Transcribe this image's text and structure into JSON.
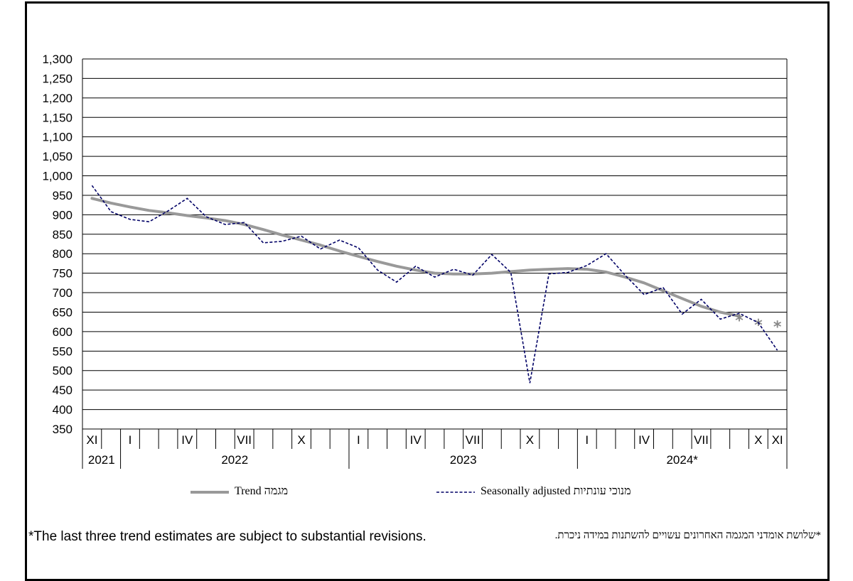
{
  "chart_data": {
    "type": "line",
    "y_ticks": [
      "1,300",
      "1,250",
      "1,200",
      "1,150",
      "1,100",
      "1,050",
      "1,000",
      "950",
      "900",
      "850",
      "800",
      "750",
      "700",
      "650",
      "600",
      "550",
      "500",
      "450",
      "400",
      "350"
    ],
    "ylim": [
      350,
      1300
    ],
    "month_labels": [
      "XI",
      "",
      "I",
      "",
      "",
      "IV",
      "",
      "",
      "VII",
      "",
      "",
      "X",
      "",
      "",
      "I",
      "",
      "",
      "IV",
      "",
      "",
      "VII",
      "",
      "",
      "X",
      "",
      "",
      "I",
      "",
      "",
      "IV",
      "",
      "",
      "VII",
      "",
      "",
      "X",
      "XI"
    ],
    "year_labels": [
      {
        "label": "2021",
        "start": 0,
        "end": 2
      },
      {
        "label": "2022",
        "start": 2,
        "end": 14
      },
      {
        "label": "2023",
        "start": 14,
        "end": 26
      },
      {
        "label": "2024*",
        "start": 26,
        "end": 37
      }
    ],
    "series": [
      {
        "name": "Trend מגמה",
        "color": "#999999",
        "style": "solid",
        "values": [
          942,
          930,
          920,
          911,
          905,
          898,
          892,
          885,
          875,
          862,
          848,
          835,
          822,
          807,
          793,
          780,
          768,
          758,
          750,
          748,
          748,
          750,
          754,
          758,
          760,
          762,
          760,
          753,
          740,
          725,
          705,
          685,
          665,
          650,
          640,
          null,
          null
        ],
        "provisional": [
          {
            "index": 34,
            "value": 632
          },
          {
            "index": 35,
            "value": 620
          },
          {
            "index": 36,
            "value": 615
          }
        ]
      },
      {
        "name": "Seasonally adjusted מנוכי עונתיות",
        "color": "#000066",
        "style": "dashed",
        "values": [
          975,
          908,
          888,
          882,
          910,
          942,
          895,
          875,
          880,
          828,
          832,
          845,
          812,
          835,
          815,
          758,
          727,
          768,
          740,
          760,
          745,
          798,
          752,
          468,
          748,
          752,
          770,
          800,
          745,
          695,
          713,
          645,
          683,
          632,
          647,
          623,
          552
        ]
      }
    ]
  },
  "legend": {
    "trend_en": "Trend",
    "trend_he": "מגמה",
    "sa_en": "Seasonally adjusted",
    "sa_he": "מנוכי עונתיות"
  },
  "notes": {
    "en": "*The last three trend estimates are subject to substantial revisions.",
    "he": "*שלושת אומדני המגמה האחרונים עשויים להשתנות במידה ניכרת."
  }
}
